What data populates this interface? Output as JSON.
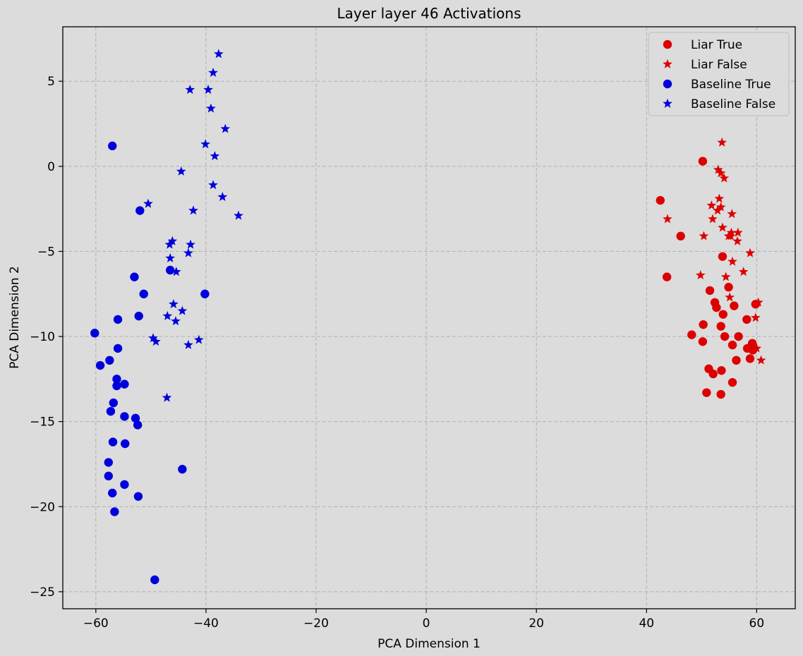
{
  "chart_data": {
    "type": "scatter",
    "title": "Layer layer 46 Activations",
    "xlabel": "PCA Dimension 1",
    "ylabel": "PCA Dimension 2",
    "xlim": [
      -66,
      67
    ],
    "ylim": [
      -26,
      8.2
    ],
    "xticks": [
      -60,
      -40,
      -20,
      0,
      20,
      40,
      60
    ],
    "yticks": [
      5,
      0,
      -5,
      -10,
      -15,
      -20,
      -25
    ],
    "xtick_labels": [
      "−60",
      "−40",
      "−20",
      "0",
      "20",
      "40",
      "60"
    ],
    "ytick_labels": [
      "5",
      "0",
      "−5",
      "−10",
      "−15",
      "−20",
      "−25"
    ],
    "grid": true,
    "legend_position": "top-right",
    "colors": {
      "liar": "#dd0000",
      "baseline": "#0000dd",
      "background": "#dcdcdc"
    },
    "series": [
      {
        "name": "Liar True",
        "marker": "circle",
        "color": "#dd0000",
        "points": [
          [
            50.2,
            0.3
          ],
          [
            42.5,
            -2.0
          ],
          [
            46.2,
            -4.1
          ],
          [
            43.7,
            -6.5
          ],
          [
            53.8,
            -5.3
          ],
          [
            51.5,
            -7.3
          ],
          [
            54.9,
            -7.1
          ],
          [
            52.4,
            -8.0
          ],
          [
            52.7,
            -8.3
          ],
          [
            55.9,
            -8.2
          ],
          [
            59.8,
            -8.1
          ],
          [
            53.9,
            -8.7
          ],
          [
            58.2,
            -9.0
          ],
          [
            50.3,
            -9.3
          ],
          [
            53.5,
            -9.4
          ],
          [
            48.2,
            -9.9
          ],
          [
            56.7,
            -10.0
          ],
          [
            54.2,
            -10.0
          ],
          [
            50.2,
            -10.3
          ],
          [
            55.6,
            -10.5
          ],
          [
            59.2,
            -10.4
          ],
          [
            58.3,
            -10.7
          ],
          [
            59.3,
            -10.8
          ],
          [
            58.8,
            -11.3
          ],
          [
            56.3,
            -11.4
          ],
          [
            51.3,
            -11.9
          ],
          [
            53.6,
            -12.0
          ],
          [
            52.1,
            -12.2
          ],
          [
            55.6,
            -12.7
          ],
          [
            50.9,
            -13.3
          ],
          [
            53.5,
            -13.4
          ]
        ]
      },
      {
        "name": "Liar False",
        "marker": "star",
        "color": "#dd0000",
        "points": [
          [
            53.7,
            1.4
          ],
          [
            53.0,
            -0.2
          ],
          [
            53.5,
            -0.4
          ],
          [
            54.1,
            -0.7
          ],
          [
            53.2,
            -1.9
          ],
          [
            51.8,
            -2.3
          ],
          [
            53.5,
            -2.4
          ],
          [
            52.9,
            -2.6
          ],
          [
            55.5,
            -2.8
          ],
          [
            43.8,
            -3.1
          ],
          [
            52.0,
            -3.1
          ],
          [
            53.8,
            -3.6
          ],
          [
            55.4,
            -3.9
          ],
          [
            56.6,
            -3.9
          ],
          [
            54.9,
            -4.1
          ],
          [
            55.3,
            -4.1
          ],
          [
            50.4,
            -4.1
          ],
          [
            56.5,
            -4.4
          ],
          [
            58.8,
            -5.1
          ],
          [
            55.6,
            -5.6
          ],
          [
            57.6,
            -6.2
          ],
          [
            49.8,
            -6.4
          ],
          [
            54.4,
            -6.5
          ],
          [
            55.1,
            -7.7
          ],
          [
            60.3,
            -8.0
          ],
          [
            59.8,
            -8.9
          ],
          [
            60.0,
            -10.7
          ],
          [
            60.8,
            -11.4
          ]
        ]
      },
      {
        "name": "Baseline True",
        "marker": "circle",
        "color": "#0000dd",
        "points": [
          [
            -57.0,
            1.2
          ],
          [
            -52.0,
            -2.6
          ],
          [
            -46.5,
            -6.1
          ],
          [
            -53.0,
            -6.5
          ],
          [
            -51.3,
            -7.5
          ],
          [
            -40.2,
            -7.5
          ],
          [
            -52.2,
            -8.8
          ],
          [
            -56.0,
            -9.0
          ],
          [
            -60.2,
            -9.8
          ],
          [
            -56.0,
            -10.7
          ],
          [
            -59.2,
            -11.7
          ],
          [
            -57.5,
            -11.4
          ],
          [
            -56.2,
            -12.5
          ],
          [
            -56.2,
            -12.9
          ],
          [
            -54.8,
            -12.8
          ],
          [
            -56.8,
            -13.9
          ],
          [
            -57.3,
            -14.4
          ],
          [
            -54.8,
            -14.7
          ],
          [
            -52.8,
            -14.8
          ],
          [
            -52.4,
            -15.2
          ],
          [
            -56.9,
            -16.2
          ],
          [
            -54.7,
            -16.3
          ],
          [
            -57.7,
            -17.4
          ],
          [
            -44.3,
            -17.8
          ],
          [
            -57.7,
            -18.2
          ],
          [
            -54.8,
            -18.7
          ],
          [
            -57.0,
            -19.2
          ],
          [
            -52.3,
            -19.4
          ],
          [
            -56.6,
            -20.3
          ],
          [
            -49.3,
            -24.3
          ]
        ]
      },
      {
        "name": "Baseline False",
        "marker": "star",
        "color": "#0000dd",
        "points": [
          [
            -37.7,
            6.6
          ],
          [
            -38.7,
            5.5
          ],
          [
            -42.9,
            4.5
          ],
          [
            -39.6,
            4.5
          ],
          [
            -39.1,
            3.4
          ],
          [
            -36.5,
            2.2
          ],
          [
            -40.1,
            1.3
          ],
          [
            -38.4,
            0.6
          ],
          [
            -44.5,
            -0.3
          ],
          [
            -38.7,
            -1.1
          ],
          [
            -37.0,
            -1.8
          ],
          [
            -50.5,
            -2.2
          ],
          [
            -42.3,
            -2.6
          ],
          [
            -34.1,
            -2.9
          ],
          [
            -46.1,
            -4.4
          ],
          [
            -46.6,
            -4.6
          ],
          [
            -42.8,
            -4.6
          ],
          [
            -43.2,
            -5.1
          ],
          [
            -46.5,
            -5.4
          ],
          [
            -45.4,
            -6.2
          ],
          [
            -45.9,
            -8.1
          ],
          [
            -44.3,
            -8.5
          ],
          [
            -47.0,
            -8.8
          ],
          [
            -45.5,
            -9.1
          ],
          [
            -49.6,
            -10.1
          ],
          [
            -49.1,
            -10.3
          ],
          [
            -41.3,
            -10.2
          ],
          [
            -43.2,
            -10.5
          ],
          [
            -47.1,
            -13.6
          ]
        ]
      }
    ]
  }
}
